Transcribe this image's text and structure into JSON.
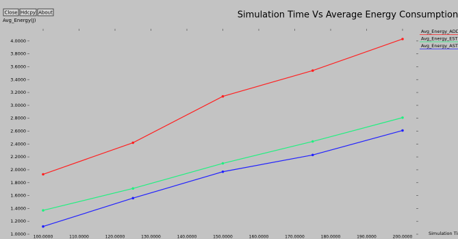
{
  "buttons": [
    "Close",
    "Hdcpy",
    "About"
  ],
  "chart_data": {
    "type": "line",
    "title": "Simulation Time Vs Average Energy Consumption",
    "y_label": "Avg_Energy(J)",
    "x_label": "Simulation Tim",
    "x": [
      100,
      125,
      150,
      175,
      200
    ],
    "series": [
      {
        "name": "Avg_Energy_ADD",
        "color": "#ff2020",
        "values": [
          1.93,
          2.42,
          3.14,
          3.54,
          4.03
        ]
      },
      {
        "name": "Avg_Energy_EST",
        "color": "#20f080",
        "values": [
          1.37,
          1.71,
          2.1,
          2.44,
          2.81
        ]
      },
      {
        "name": "Avg_Energy_AST",
        "color": "#2020ff",
        "values": [
          1.12,
          1.56,
          1.97,
          2.23,
          2.61
        ]
      }
    ],
    "xlim": [
      100,
      200
    ],
    "xticks": [
      {
        "value": 100,
        "label": "100.0000"
      },
      {
        "value": 110,
        "label": "110.0000"
      },
      {
        "value": 120,
        "label": "120.0000"
      },
      {
        "value": 130,
        "label": "130.0000"
      },
      {
        "value": 140,
        "label": "140.0000"
      },
      {
        "value": 150,
        "label": "150.0000"
      },
      {
        "value": 160,
        "label": "160.0000"
      },
      {
        "value": 170,
        "label": "170.0000"
      },
      {
        "value": 180,
        "label": "180.0000"
      },
      {
        "value": 190,
        "label": "190.0000"
      },
      {
        "value": 200,
        "label": "200.0000"
      }
    ],
    "ylim": [
      1,
      4.2
    ],
    "yticks": [
      {
        "value": 1,
        "label": "1.0000"
      },
      {
        "value": 1.2,
        "label": "1.2000"
      },
      {
        "value": 1.4,
        "label": "1.4000"
      },
      {
        "value": 1.6,
        "label": "1.6000"
      },
      {
        "value": 1.8,
        "label": "1.8000"
      },
      {
        "value": 2,
        "label": "2.0000"
      },
      {
        "value": 2.2,
        "label": "2.2000"
      },
      {
        "value": 2.4,
        "label": "2.4000"
      },
      {
        "value": 2.6,
        "label": "2.6000"
      },
      {
        "value": 2.8,
        "label": "2.8000"
      },
      {
        "value": 3,
        "label": "3.0000"
      },
      {
        "value": 3.2,
        "label": "3.2000"
      },
      {
        "value": 3.4,
        "label": "3.4000"
      },
      {
        "value": 3.6,
        "label": "3.6000"
      },
      {
        "value": 3.8,
        "label": "3.8000"
      },
      {
        "value": 4,
        "label": "4.0000"
      }
    ]
  }
}
